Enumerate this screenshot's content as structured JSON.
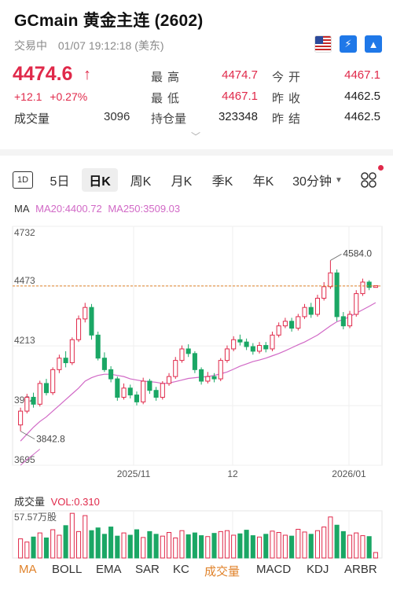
{
  "header": {
    "title": "GCmain  黄金主连 (2602)",
    "status": "交易中",
    "datetime": "01/07 19:12:18 (美东)",
    "price": "4474.6",
    "change": "+12.1",
    "change_pct": "+0.27%",
    "volume_label": "成交量",
    "volume_value": "3096",
    "stats": [
      {
        "label": "最高",
        "value": "4474.7",
        "tone": "red"
      },
      {
        "label": "今开",
        "value": "4467.1",
        "tone": "red"
      },
      {
        "label": "最低",
        "value": "4467.1",
        "tone": "red"
      },
      {
        "label": "昨收",
        "value": "4462.5",
        "tone": "dark"
      },
      {
        "label": "持仓量",
        "value": "323348",
        "tone": "dark"
      },
      {
        "label": "昨结",
        "value": "4462.5",
        "tone": "dark"
      }
    ],
    "flag_icon": "us-flag-icon",
    "blue_icons": [
      "lightning-icon",
      "pyramid-icon"
    ]
  },
  "tabs": [
    {
      "label": "1D",
      "active": false
    },
    {
      "label": "5日",
      "active": false
    },
    {
      "label": "日K",
      "active": true
    },
    {
      "label": "周K",
      "active": false
    },
    {
      "label": "月K",
      "active": false
    },
    {
      "label": "季K",
      "active": false
    },
    {
      "label": "年K",
      "active": false
    },
    {
      "label": "30分钟",
      "active": false
    }
  ],
  "ma_legend": {
    "title": "MA",
    "ma20": "MA20:4400.72",
    "ma250": "MA250:3509.03"
  },
  "chart_data": {
    "type": "candlestick",
    "y_ticks": [
      "4732",
      "4473",
      "4213",
      "3954",
      "3695"
    ],
    "ylim": [
      3695,
      4732
    ],
    "x_ticks": [
      "2025/11",
      "12",
      "2026/01"
    ],
    "annotations": {
      "high": "4584.0",
      "low": "3842.8"
    },
    "current_price_line": 4473,
    "up_color": "#e0294a",
    "down_color": "#1aa765",
    "candles": [
      [
        3870,
        3930,
        3945,
        3842.8
      ],
      [
        3930,
        3990,
        4005,
        3920
      ],
      [
        3990,
        3960,
        4010,
        3945
      ],
      [
        3960,
        4050,
        4062,
        3950
      ],
      [
        4050,
        4010,
        4070,
        3998
      ],
      [
        4010,
        4110,
        4120,
        4000
      ],
      [
        4110,
        4160,
        4175,
        4095
      ],
      [
        4160,
        4140,
        4190,
        4120
      ],
      [
        4140,
        4240,
        4250,
        4130
      ],
      [
        4240,
        4330,
        4345,
        4230
      ],
      [
        4330,
        4380,
        4400,
        4315
      ],
      [
        4380,
        4260,
        4395,
        4240
      ],
      [
        4260,
        4160,
        4275,
        4150
      ],
      [
        4160,
        4110,
        4185,
        4100
      ],
      [
        4110,
        4070,
        4125,
        4055
      ],
      [
        4070,
        3990,
        4080,
        3975
      ],
      [
        3990,
        4030,
        4050,
        3980
      ],
      [
        4030,
        4000,
        4045,
        3985
      ],
      [
        4000,
        3970,
        4015,
        3955
      ],
      [
        3970,
        4060,
        4075,
        3960
      ],
      [
        4060,
        4020,
        4070,
        4005
      ],
      [
        4020,
        3990,
        4035,
        3975
      ],
      [
        3990,
        4050,
        4060,
        3980
      ],
      [
        4050,
        4080,
        4095,
        4040
      ],
      [
        4080,
        4150,
        4165,
        4070
      ],
      [
        4150,
        4200,
        4215,
        4140
      ],
      [
        4200,
        4180,
        4220,
        4165
      ],
      [
        4180,
        4110,
        4190,
        4095
      ],
      [
        4110,
        4060,
        4120,
        4045
      ],
      [
        4060,
        4080,
        4100,
        4050
      ],
      [
        4080,
        4070,
        4095,
        4055
      ],
      [
        4070,
        4150,
        4160,
        4060
      ],
      [
        4150,
        4200,
        4215,
        4140
      ],
      [
        4200,
        4240,
        4255,
        4190
      ],
      [
        4240,
        4230,
        4262,
        4215
      ],
      [
        4230,
        4210,
        4245,
        4195
      ],
      [
        4210,
        4190,
        4225,
        4175
      ],
      [
        4190,
        4215,
        4230,
        4180
      ],
      [
        4215,
        4200,
        4230,
        4185
      ],
      [
        4200,
        4260,
        4275,
        4190
      ],
      [
        4260,
        4300,
        4315,
        4250
      ],
      [
        4300,
        4320,
        4335,
        4290
      ],
      [
        4320,
        4290,
        4335,
        4275
      ],
      [
        4290,
        4340,
        4352,
        4280
      ],
      [
        4340,
        4380,
        4395,
        4330
      ],
      [
        4380,
        4350,
        4400,
        4335
      ],
      [
        4350,
        4420,
        4435,
        4340
      ],
      [
        4420,
        4470,
        4490,
        4410
      ],
      [
        4470,
        4530,
        4584.0,
        4460
      ],
      [
        4530,
        4340,
        4545,
        4320
      ],
      [
        4340,
        4300,
        4360,
        4285
      ],
      [
        4300,
        4350,
        4365,
        4290
      ],
      [
        4350,
        4440,
        4455,
        4340
      ],
      [
        4440,
        4490,
        4505,
        4430
      ],
      [
        4490,
        4467,
        4498,
        4455
      ],
      [
        4467,
        4474.6,
        4474.7,
        4467.1
      ]
    ],
    "ma20": [
      3800,
      3830,
      3860,
      3885,
      3905,
      3930,
      3955,
      3980,
      4005,
      4030,
      4060,
      4075,
      4085,
      4090,
      4090,
      4085,
      4080,
      4070,
      4065,
      4060,
      4058,
      4055,
      4050,
      4052,
      4058,
      4065,
      4072,
      4075,
      4078,
      4080,
      4085,
      4092,
      4100,
      4112,
      4125,
      4135,
      4145,
      4152,
      4160,
      4170,
      4180,
      4192,
      4205,
      4218,
      4230,
      4245,
      4260,
      4280,
      4300,
      4318,
      4328,
      4340,
      4355,
      4370,
      4385,
      4400.72
    ],
    "ma250_start": [
      3695,
      3720,
      3742,
      3765
    ]
  },
  "volume": {
    "title": "成交量",
    "indicator": "VOL:0.310",
    "max_label": "57.57万股",
    "bars": [
      0.42,
      0.35,
      0.46,
      0.55,
      0.44,
      0.62,
      0.5,
      0.71,
      0.98,
      0.58,
      0.93,
      0.6,
      0.66,
      0.52,
      0.68,
      0.48,
      0.55,
      0.5,
      0.62,
      0.45,
      0.58,
      0.52,
      0.48,
      0.56,
      0.44,
      0.6,
      0.51,
      0.55,
      0.49,
      0.47,
      0.54,
      0.58,
      0.6,
      0.5,
      0.53,
      0.61,
      0.49,
      0.46,
      0.52,
      0.59,
      0.56,
      0.5,
      0.48,
      0.63,
      0.57,
      0.52,
      0.6,
      0.68,
      0.9,
      0.72,
      0.58,
      0.5,
      0.55,
      0.49,
      0.47,
      0.12
    ],
    "bar_dirs": [
      1,
      1,
      0,
      1,
      0,
      1,
      1,
      0,
      1,
      1,
      1,
      0,
      0,
      0,
      0,
      0,
      1,
      0,
      0,
      1,
      0,
      0,
      1,
      1,
      1,
      1,
      0,
      0,
      0,
      1,
      0,
      1,
      1,
      1,
      0,
      0,
      0,
      1,
      0,
      1,
      1,
      1,
      0,
      1,
      1,
      0,
      1,
      1,
      1,
      0,
      0,
      1,
      1,
      1,
      0,
      1
    ]
  },
  "indicators": [
    {
      "label": "MA",
      "active": true
    },
    {
      "label": "BOLL",
      "active": false
    },
    {
      "label": "EMA",
      "active": false
    },
    {
      "label": "SAR",
      "active": false
    },
    {
      "label": "KC",
      "active": false
    },
    {
      "label": "成交量",
      "active": true
    },
    {
      "label": "MACD",
      "active": false
    },
    {
      "label": "KDJ",
      "active": false
    },
    {
      "label": "ARBR",
      "active": false
    }
  ]
}
